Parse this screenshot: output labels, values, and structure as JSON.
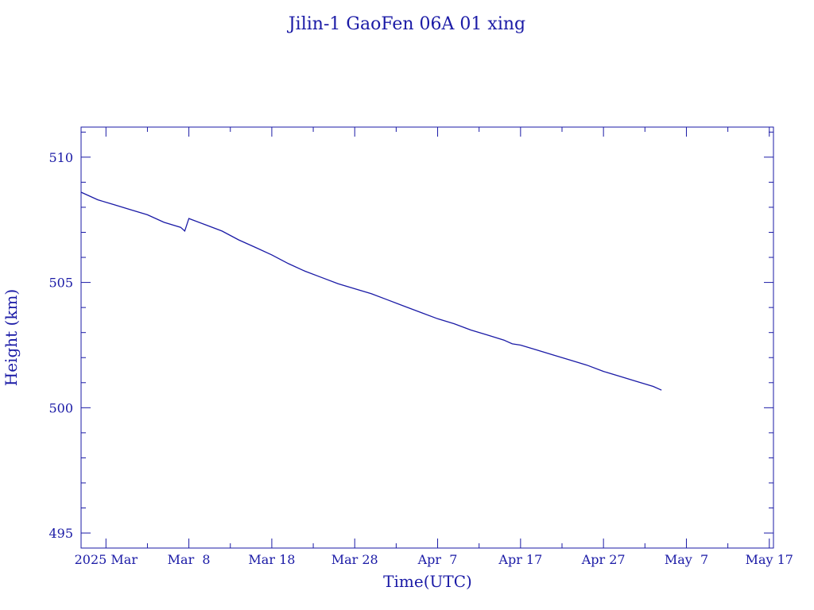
{
  "chart_data": {
    "type": "line",
    "title": "Jilin-1 GaoFen 06A 01 xing",
    "xlabel": "Time(UTC)",
    "ylabel": "Height (km)",
    "xlim": [
      "2025-02-23",
      "2025-05-17T12:00"
    ],
    "ylim": [
      494.4,
      511.2
    ],
    "grid": false,
    "colors": {
      "axes": "#1a1aa6",
      "line": "#1a1aa6",
      "text": "#1a1aa6"
    },
    "x_ticks": [
      {
        "date": "2025-03-08",
        "label": "Mar  8"
      },
      {
        "date": "2025-03-18",
        "label": "Mar 18"
      },
      {
        "date": "2025-03-28",
        "label": "Mar 28"
      },
      {
        "date": "2025-04-07",
        "label": "Apr  7"
      },
      {
        "date": "2025-04-17",
        "label": "Apr 17"
      },
      {
        "date": "2025-04-27",
        "label": "Apr 27"
      },
      {
        "date": "2025-05-07",
        "label": "May  7"
      },
      {
        "date": "2025-05-17",
        "label": "May 17"
      }
    ],
    "x_year_label": {
      "date": "2025-02-26",
      "label": "2025 Mar"
    },
    "y_ticks": [
      495,
      500,
      505,
      510
    ],
    "series": [
      {
        "points": [
          [
            "2025-02-23",
            508.6
          ],
          [
            "2025-02-25",
            508.3
          ],
          [
            "2025-02-27",
            508.1
          ],
          [
            "2025-03-01",
            507.9
          ],
          [
            "2025-03-03",
            507.7
          ],
          [
            "2025-03-05",
            507.4
          ],
          [
            "2025-03-07",
            507.2
          ],
          [
            "2025-03-07T12:00",
            507.05
          ],
          [
            "2025-03-08",
            507.55
          ],
          [
            "2025-03-10",
            507.3
          ],
          [
            "2025-03-12",
            507.05
          ],
          [
            "2025-03-14",
            506.7
          ],
          [
            "2025-03-16",
            506.4
          ],
          [
            "2025-03-18",
            506.1
          ],
          [
            "2025-03-20",
            505.75
          ],
          [
            "2025-03-22",
            505.45
          ],
          [
            "2025-03-24",
            505.2
          ],
          [
            "2025-03-26",
            504.95
          ],
          [
            "2025-03-28",
            504.75
          ],
          [
            "2025-03-30",
            504.55
          ],
          [
            "2025-04-01",
            504.3
          ],
          [
            "2025-04-03",
            504.05
          ],
          [
            "2025-04-05",
            503.8
          ],
          [
            "2025-04-07",
            503.55
          ],
          [
            "2025-04-09",
            503.35
          ],
          [
            "2025-04-11",
            503.1
          ],
          [
            "2025-04-13",
            502.9
          ],
          [
            "2025-04-15",
            502.7
          ],
          [
            "2025-04-16",
            502.55
          ],
          [
            "2025-04-17",
            502.5
          ],
          [
            "2025-04-19",
            502.3
          ],
          [
            "2025-04-21",
            502.1
          ],
          [
            "2025-04-23",
            501.9
          ],
          [
            "2025-04-25",
            501.7
          ],
          [
            "2025-04-27",
            501.45
          ],
          [
            "2025-04-29",
            501.25
          ],
          [
            "2025-05-01",
            501.05
          ],
          [
            "2025-05-03",
            500.85
          ],
          [
            "2025-05-04",
            500.7
          ]
        ]
      }
    ]
  }
}
